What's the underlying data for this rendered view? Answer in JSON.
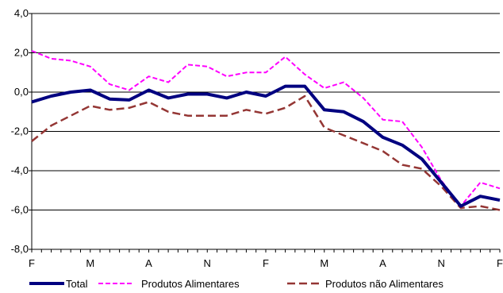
{
  "chart_data": {
    "type": "line",
    "title": "",
    "xlabel": "",
    "ylabel": "",
    "ylim": [
      -8.0,
      4.0
    ],
    "y_ticks": [
      "4,0",
      "2,0",
      "0,0",
      "-2,0",
      "-4,0",
      "-6,0",
      "-8,0"
    ],
    "y_tick_values": [
      4,
      2,
      0,
      -2,
      -4,
      -6,
      -8
    ],
    "x_tick_labels": [
      "F",
      "M",
      "A",
      "N",
      "F",
      "M",
      "A",
      "N",
      "F"
    ],
    "x_tick_index": [
      0,
      6,
      12,
      18,
      24,
      30,
      36,
      42,
      48
    ],
    "grid": "horizontal",
    "legend_position": "bottom",
    "series": [
      {
        "name": "Total",
        "color": "#000080",
        "style": "solid-thick",
        "values": [
          -0.5,
          -0.2,
          0.0,
          0.1,
          -0.35,
          -0.4,
          0.1,
          -0.3,
          -0.1,
          -0.1,
          -0.3,
          0.0,
          -0.2,
          0.3,
          0.3,
          -0.9,
          -1.0,
          -1.5,
          -2.3,
          -2.7,
          -3.4,
          -4.6,
          -5.8,
          -5.3,
          -5.5
        ]
      },
      {
        "name": "Produtos Alimentares",
        "color": "#FF00FF",
        "style": "dashed",
        "values": [
          2.1,
          1.7,
          1.6,
          1.3,
          0.4,
          0.1,
          0.8,
          0.5,
          1.4,
          1.3,
          0.8,
          1.0,
          1.0,
          1.8,
          0.9,
          0.2,
          0.5,
          -0.3,
          -1.4,
          -1.5,
          -2.8,
          -4.5,
          -5.8,
          -4.6,
          -4.9
        ]
      },
      {
        "name": "Produtos não Alimentares",
        "color": "#943634",
        "style": "dashed-long",
        "values": [
          -2.5,
          -1.7,
          -1.2,
          -0.7,
          -0.9,
          -0.8,
          -0.5,
          -1.0,
          -1.2,
          -1.2,
          -1.2,
          -0.9,
          -1.1,
          -0.8,
          -0.2,
          -1.8,
          -2.2,
          -2.6,
          -3.0,
          -3.7,
          -3.9,
          -4.8,
          -5.9,
          -5.8,
          -6.0
        ]
      }
    ]
  }
}
